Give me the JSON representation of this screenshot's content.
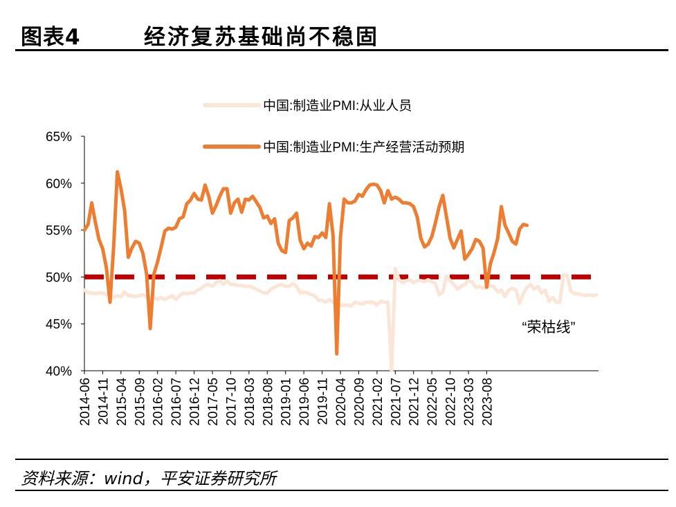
{
  "title": {
    "number": "图表4",
    "text": "经济复苏基础尚不稳固"
  },
  "source": "资料来源：wind，平安证券研究所",
  "colors": {
    "employees": "#fbe5d6",
    "expectations": "#ed7d31",
    "threshold": "#c00000"
  },
  "chart_data": {
    "type": "line",
    "x_start": "2014-06",
    "x_tick_labels": [
      "2014-06",
      "2014-11",
      "2015-04",
      "2015-09",
      "2016-02",
      "2016-07",
      "2016-12",
      "2017-05",
      "2017-10",
      "2018-03",
      "2018-08",
      "2019-01",
      "2019-06",
      "2019-11",
      "2020-04",
      "2020-09",
      "2021-02",
      "2021-07",
      "2021-12",
      "2022-05",
      "2022-10",
      "2023-03",
      "2023-08"
    ],
    "y_ticks": [
      "40%",
      "45%",
      "50%",
      "55%",
      "60%",
      "65%"
    ],
    "ylim": [
      40,
      65
    ],
    "legend": "top-center",
    "reference_line": {
      "value": 50,
      "label": "“荣枯线”"
    },
    "series": [
      {
        "name": "中国:制造业PMI:从业人员",
        "values": [
          48.6,
          48.3,
          48.3,
          48.2,
          48.3,
          48.3,
          48.1,
          48.2,
          47.8,
          48.0,
          47.9,
          48.4,
          48.0,
          48.0,
          47.9,
          48.0,
          48.1,
          47.9,
          47.8,
          47.8,
          47.6,
          47.8,
          47.6,
          47.8,
          48.0,
          47.6,
          48.0,
          48.3,
          48.2,
          48.3,
          48.3,
          48.6,
          48.8,
          49.1,
          49.2,
          49.0,
          49.4,
          49.6,
          49.2,
          49.6,
          49.2,
          49.2,
          49.1,
          49.1,
          49.0,
          49.0,
          48.9,
          48.7,
          48.5,
          48.3,
          48.3,
          48.7,
          48.9,
          49.1,
          49.2,
          49.0,
          49.0,
          49.3,
          49.0,
          48.3,
          48.4,
          48.3,
          48.1,
          48.0,
          47.5,
          47.5,
          47.3,
          47.6,
          47.3,
          47.0,
          47.0,
          47.0,
          47.0,
          46.9,
          47.3,
          47.2,
          47.1,
          47.3,
          47.3,
          47.3,
          47.0,
          47.4,
          47.3,
          47.3,
          40.0,
          50.9,
          49.7,
          49.4,
          49.6,
          49.7,
          49.4,
          49.6,
          49.6,
          49.5,
          49.7,
          49.5,
          49.3,
          48.1,
          48.4,
          50.1,
          49.6,
          49.2,
          48.7,
          49.0,
          49.2,
          49.6,
          49.5,
          48.9,
          49.0,
          48.8,
          48.9,
          49.1,
          48.9,
          48.4,
          48.6,
          47.9,
          48.6,
          48.8,
          48.6,
          47.2,
          48.2,
          48.9,
          49.2,
          48.7,
          49.0,
          48.3,
          48.6,
          47.4,
          47.8,
          47.3,
          47.3,
          50.2,
          50.2,
          48.5,
          48.2,
          48.2,
          48.1,
          48.0,
          48.1,
          48.0,
          48.1
        ]
      },
      {
        "name": "中国:制造业PMI:生产经营活动预期",
        "values": [
          55.0,
          55.6,
          57.9,
          55.8,
          54.0,
          53.0,
          51.0,
          47.3,
          53.3,
          61.2,
          59.4,
          57.1,
          52.1,
          53.1,
          53.8,
          53.6,
          52.5,
          50.3,
          44.5,
          50.3,
          51.6,
          53.2,
          54.9,
          55.2,
          55.1,
          55.3,
          56.2,
          56.4,
          57.8,
          58.2,
          58.9,
          58.3,
          58.2,
          59.8,
          58.6,
          56.8,
          57.6,
          58.6,
          59.4,
          59.4,
          56.8,
          57.9,
          58.3,
          56.9,
          58.3,
          58.2,
          58.6,
          58.0,
          57.4,
          56.3,
          56.5,
          55.7,
          56.2,
          53.6,
          52.8,
          52.6,
          56.0,
          56.3,
          56.8,
          53.9,
          53.0,
          53.6,
          53.3,
          54.3,
          54.2,
          54.7,
          54.2,
          57.8,
          54.4,
          41.8,
          54.2,
          58.3,
          57.9,
          57.9,
          58.1,
          58.8,
          58.6,
          59.3,
          59.8,
          59.9,
          59.8,
          59.2,
          57.9,
          59.2,
          58.3,
          58.5,
          58.3,
          57.9,
          57.9,
          57.8,
          57.5,
          56.4,
          54.1,
          53.2,
          53.5,
          54.3,
          55.8,
          57.5,
          58.7,
          56.4,
          54.1,
          53.1,
          54.0,
          54.9,
          51.9,
          52.4,
          53.0,
          54.0,
          53.8,
          53.1,
          48.9,
          51.4,
          52.6,
          54.1,
          57.5,
          55.5,
          54.7,
          53.8,
          53.5,
          55.1,
          55.6,
          55.5
        ]
      }
    ]
  }
}
